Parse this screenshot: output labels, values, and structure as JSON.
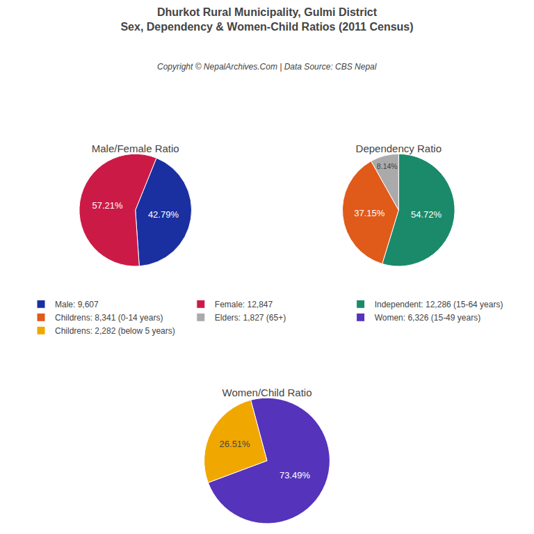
{
  "title": "Dhurkot Rural Municipality, Gulmi District",
  "subtitle": "Sex, Dependency & Women-Child Ratios (2011 Census)",
  "annotations": [
    "Copyright © NepalArchives.Com | Data Source: CBS Nepal"
  ],
  "legend": "center",
  "chart_data": [
    {
      "type": "pie",
      "title": "Male/Female Ratio",
      "categories": [
        "Male: 9,607",
        "Female: 12,847"
      ],
      "values": [
        42.79,
        57.21
      ],
      "value_labels": [
        "42.79%",
        "57.21%"
      ],
      "colors": [
        "#1a2fa0",
        "#cc1a47"
      ],
      "data_labels": true
    },
    {
      "type": "pie",
      "title": "Dependency Ratio",
      "categories": [
        "Independent: 12,286 (15-64 years)",
        "Childrens: 8,341 (0-14 years)",
        "Elders: 1,827 (65+)"
      ],
      "values": [
        54.72,
        37.15,
        8.14
      ],
      "value_labels": [
        "54.72%",
        "37.15%",
        "8.14%"
      ],
      "colors": [
        "#1a8a6a",
        "#e05a1a",
        "#aaaaaa"
      ],
      "data_labels": true
    },
    {
      "type": "pie",
      "title": "Women/Child Ratio",
      "categories": [
        "Women: 6,326 (15-49 years)",
        "Childrens: 2,282 (below 5 years)"
      ],
      "values": [
        73.49,
        26.51
      ],
      "value_labels": [
        "73.49%",
        "26.51%"
      ],
      "colors": [
        "#5533bb",
        "#f0a800"
      ],
      "data_labels": true
    }
  ]
}
